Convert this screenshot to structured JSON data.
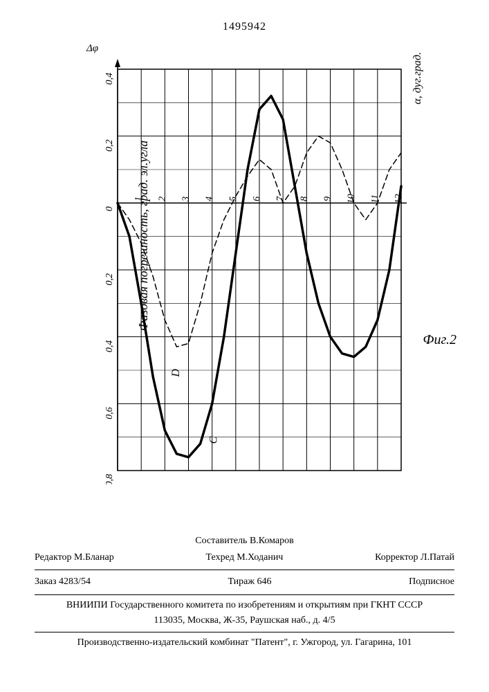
{
  "doc_number": "1495942",
  "chart": {
    "type": "line",
    "y_label": "Фазовая погрешность, град. эл.угла",
    "y_symbol": "Δφ",
    "x_label": "α, дуг.град.",
    "fig_label": "Фиг.2",
    "y_ticks_upper": [
      "0,4",
      "0,2",
      "0"
    ],
    "y_ticks_lower": [
      "0,2",
      "0,4",
      "0,6",
      "0,8"
    ],
    "x_ticks": [
      "1",
      "2",
      "3",
      "4",
      "5",
      "6",
      "7",
      "8",
      "9",
      "10",
      "11",
      "12"
    ],
    "x_range": [
      0,
      12
    ],
    "y_range": [
      -0.8,
      0.4
    ],
    "grid_color": "#000000",
    "background": "#ffffff",
    "series": [
      {
        "name": "C",
        "label": "C",
        "style": "solid",
        "width": 3.5,
        "color": "#000000",
        "points": [
          [
            0,
            0.0
          ],
          [
            0.5,
            -0.1
          ],
          [
            1,
            -0.3
          ],
          [
            1.5,
            -0.52
          ],
          [
            2,
            -0.68
          ],
          [
            2.5,
            -0.75
          ],
          [
            3,
            -0.76
          ],
          [
            3.5,
            -0.72
          ],
          [
            4,
            -0.6
          ],
          [
            4.5,
            -0.4
          ],
          [
            5,
            -0.15
          ],
          [
            5.5,
            0.1
          ],
          [
            6,
            0.28
          ],
          [
            6.5,
            0.32
          ],
          [
            7,
            0.25
          ],
          [
            7.5,
            0.05
          ],
          [
            8,
            -0.15
          ],
          [
            8.5,
            -0.3
          ],
          [
            9,
            -0.4
          ],
          [
            9.5,
            -0.45
          ],
          [
            10,
            -0.46
          ],
          [
            10.5,
            -0.43
          ],
          [
            11,
            -0.35
          ],
          [
            11.5,
            -0.2
          ],
          [
            12,
            0.05
          ]
        ]
      },
      {
        "name": "D",
        "label": "D",
        "style": "dashed",
        "width": 1.5,
        "color": "#000000",
        "dash": "8,5",
        "points": [
          [
            0,
            0.0
          ],
          [
            0.5,
            -0.05
          ],
          [
            1,
            -0.12
          ],
          [
            1.5,
            -0.22
          ],
          [
            2,
            -0.35
          ],
          [
            2.5,
            -0.43
          ],
          [
            3,
            -0.42
          ],
          [
            3.5,
            -0.3
          ],
          [
            4,
            -0.15
          ],
          [
            4.5,
            -0.05
          ],
          [
            5,
            0.02
          ],
          [
            5.5,
            0.08
          ],
          [
            6,
            0.13
          ],
          [
            6.5,
            0.1
          ],
          [
            7,
            0.0
          ],
          [
            7.5,
            0.05
          ],
          [
            8,
            0.15
          ],
          [
            8.5,
            0.2
          ],
          [
            9,
            0.18
          ],
          [
            9.5,
            0.1
          ],
          [
            10,
            0.0
          ],
          [
            10.5,
            -0.05
          ],
          [
            11,
            0.0
          ],
          [
            11.5,
            0.1
          ],
          [
            12,
            0.15
          ]
        ]
      }
    ]
  },
  "footer": {
    "compiler": "Составитель  В.Комаров",
    "editor": "Редактор М.Бланар",
    "tech": "Техред М.Ходанич",
    "corrector": "Корректор  Л.Патай",
    "order": "Заказ 4283/54",
    "circulation": "Тираж 646",
    "signed": "Подписное",
    "org_line1": "ВНИИПИ Государственного комитета по изобретениям и открытиям при ГКНТ СССР",
    "org_line2": "113035, Москва, Ж-35, Раушская наб., д. 4/5",
    "publisher": "Производственно-издательский комбинат \"Патент\", г. Ужгород, ул. Гагарина, 101"
  }
}
